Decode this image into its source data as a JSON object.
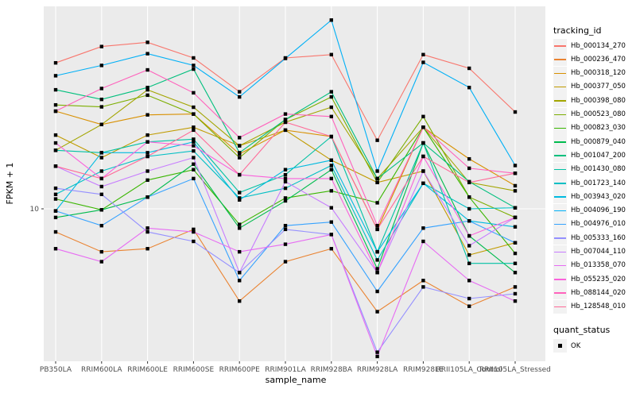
{
  "chart_data": {
    "type": "line",
    "title": "",
    "xlabel": "sample_name",
    "ylabel": "FPKM + 1",
    "y_scale": "log10",
    "y_tick_labels": [
      "10"
    ],
    "grid": "major-on",
    "legend_position": "right",
    "legend_title": "tracking_id",
    "quant_status": {
      "title": "quant_status",
      "label": "OK"
    },
    "point_shape": "filled-square",
    "panel_background": "#EBEBEB",
    "gridline_color": "#FFFFFF",
    "categories": [
      "PB350LA",
      "RRIM600LA",
      "RRIM600LE",
      "RRIM600SE",
      "RRIM600PE",
      "RRIM901LA",
      "RRIM928BA",
      "RRIM928LA",
      "RRIM928LE",
      "RRII105LA_Control",
      "RRII105LA_Stressed"
    ],
    "series": [
      {
        "name": "Hb_000134_270",
        "color": "#F8766D",
        "values": [
          41.0,
          48.0,
          50.0,
          43.0,
          31.0,
          43.0,
          44.4,
          19.4,
          44.4,
          38.9,
          25.5
        ]
      },
      {
        "name": "Hb_000236_470",
        "color": "#EA8331",
        "values": [
          8.0,
          6.6,
          6.8,
          8.2,
          4.1,
          6.0,
          6.8,
          3.7,
          5.0,
          3.9,
          4.7
        ]
      },
      {
        "name": "Hb_000318_120",
        "color": "#D89000",
        "values": [
          25.7,
          22.6,
          24.8,
          25.0,
          17.0,
          21.4,
          20.1,
          8.2,
          22.0,
          16.2,
          12.5
        ]
      },
      {
        "name": "Hb_000377_050",
        "color": "#C09B00",
        "values": [
          20.4,
          16.4,
          20.4,
          22.0,
          18.4,
          21.4,
          16.0,
          12.9,
          14.4,
          6.4,
          7.2
        ]
      },
      {
        "name": "Hb_000398_080",
        "color": "#A3A500",
        "values": [
          17.6,
          22.6,
          31.6,
          26.7,
          18.4,
          23.1,
          26.7,
          13.4,
          22.0,
          12.9,
          11.9
        ]
      },
      {
        "name": "Hb_000523_080",
        "color": "#7CAE00",
        "values": [
          27.3,
          26.8,
          30.0,
          25.0,
          16.4,
          23.7,
          29.5,
          12.9,
          24.4,
          11.2,
          9.2
        ]
      },
      {
        "name": "Hb_000823_030",
        "color": "#39B600",
        "values": [
          11.0,
          9.9,
          13.2,
          14.6,
          8.6,
          11.1,
          11.9,
          10.6,
          22.0,
          11.2,
          6.5
        ]
      },
      {
        "name": "Hb_000879_040",
        "color": "#00BB4E",
        "values": [
          9.2,
          9.9,
          11.2,
          15.4,
          8.3,
          10.8,
          14.6,
          5.6,
          18.9,
          7.7,
          5.4
        ]
      },
      {
        "name": "Hb_001047_200",
        "color": "#00BF7D",
        "values": [
          31.6,
          28.8,
          32.3,
          38.6,
          17.2,
          23.7,
          31.0,
          13.4,
          18.9,
          13.0,
          10.1
        ]
      },
      {
        "name": "Hb_001430_080",
        "color": "#00C1A3",
        "values": [
          17.6,
          17.2,
          19.1,
          19.6,
          11.7,
          13.9,
          20.1,
          6.6,
          18.9,
          5.9,
          5.9
        ]
      },
      {
        "name": "Hb_001723_140",
        "color": "#00BFC4",
        "values": [
          11.5,
          14.4,
          16.6,
          17.5,
          11.1,
          12.2,
          15.2,
          6.1,
          12.8,
          10.0,
          10.1
        ]
      },
      {
        "name": "Hb_003943_020",
        "color": "#00BAE0",
        "values": [
          9.8,
          17.2,
          17.2,
          19.1,
          10.9,
          14.6,
          16.0,
          6.6,
          12.8,
          8.9,
          8.4
        ]
      },
      {
        "name": "Hb_004096_190",
        "color": "#00B0F6",
        "values": [
          36.2,
          40.0,
          44.8,
          40.0,
          29.5,
          42.8,
          62.0,
          14.4,
          41.2,
          32.3,
          15.2
        ]
      },
      {
        "name": "Hb_004976_010",
        "color": "#35A2FF",
        "values": [
          9.8,
          8.5,
          11.2,
          13.4,
          5.0,
          8.5,
          8.8,
          4.5,
          8.3,
          8.9,
          7.2
        ]
      },
      {
        "name": "Hb_005333_160",
        "color": "#9590FF",
        "values": [
          12.2,
          11.5,
          8.0,
          7.3,
          5.4,
          8.2,
          7.8,
          2.5,
          4.7,
          4.2,
          4.4
        ]
      },
      {
        "name": "Hb_007044_110",
        "color": "#C77CFF",
        "values": [
          15.1,
          12.4,
          14.4,
          16.4,
          5.4,
          13.0,
          10.1,
          5.4,
          14.4,
          7.0,
          9.2
        ]
      },
      {
        "name": "Hb_013358_070",
        "color": "#E76BF3",
        "values": [
          6.8,
          6.0,
          8.3,
          8.0,
          6.6,
          7.1,
          7.8,
          2.4,
          7.3,
          5.0,
          4.1
        ]
      },
      {
        "name": "Hb_055235_020",
        "color": "#FA62DB",
        "values": [
          18.9,
          13.4,
          19.1,
          18.4,
          13.9,
          13.4,
          13.4,
          5.4,
          16.6,
          7.7,
          9.2
        ]
      },
      {
        "name": "Hb_088144_020",
        "color": "#FF62BC",
        "values": [
          25.7,
          32.0,
          38.3,
          30.7,
          19.9,
          25.0,
          24.4,
          8.5,
          22.0,
          14.8,
          14.1
        ]
      },
      {
        "name": "Hb_128548_010",
        "color": "#FF6A98",
        "values": [
          15.1,
          13.4,
          16.6,
          21.4,
          13.9,
          23.1,
          20.1,
          8.2,
          16.6,
          12.9,
          14.1
        ]
      }
    ]
  }
}
